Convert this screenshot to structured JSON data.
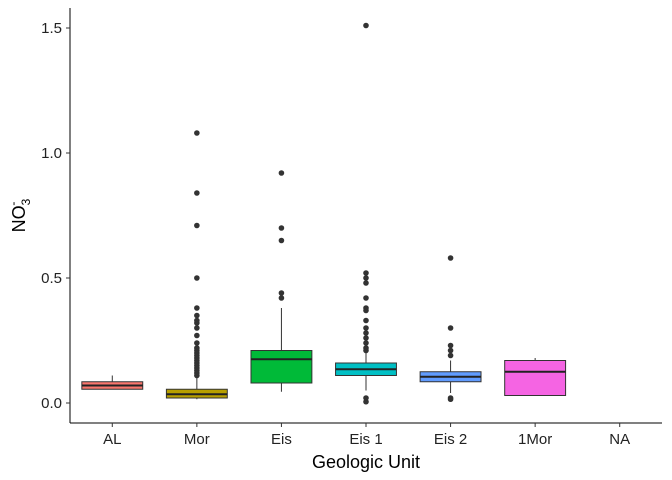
{
  "chart_data": {
    "type": "boxplot",
    "xlabel": "Geologic Unit",
    "ylabel": {
      "base": "NO",
      "subscript": "3",
      "superscript": "-"
    },
    "ylim": [
      -0.08,
      1.58
    ],
    "yticks": [
      0.0,
      0.5,
      1.0,
      1.5
    ],
    "ytick_labels": [
      "0.0",
      "0.5",
      "1.0",
      "1.5"
    ],
    "grid": false,
    "legend": "none",
    "categories": [
      "AL",
      "Mor",
      "Eis",
      "Eis 1",
      "Eis 2",
      "1Mor",
      "NA"
    ],
    "boxes": [
      {
        "category": "AL",
        "min": 0.055,
        "q1": 0.055,
        "median": 0.07,
        "q3": 0.085,
        "max": 0.11,
        "outliers": [],
        "color": "#F8766D"
      },
      {
        "category": "Mor",
        "min": 0.015,
        "q1": 0.02,
        "median": 0.035,
        "q3": 0.055,
        "max": 0.1,
        "outliers": [
          0.11,
          0.12,
          0.13,
          0.14,
          0.15,
          0.16,
          0.17,
          0.18,
          0.19,
          0.2,
          0.21,
          0.22,
          0.24,
          0.27,
          0.3,
          0.32,
          0.33,
          0.35,
          0.38,
          0.5,
          0.71,
          0.84,
          1.08
        ],
        "color": "#B79F00"
      },
      {
        "category": "Eis",
        "min": 0.045,
        "q1": 0.08,
        "median": 0.175,
        "q3": 0.21,
        "max": 0.38,
        "outliers": [
          0.42,
          0.44,
          0.65,
          0.7,
          0.92
        ],
        "color": "#00BA38"
      },
      {
        "category": "Eis 1",
        "min": 0.05,
        "q1": 0.11,
        "median": 0.135,
        "q3": 0.16,
        "max": 0.2,
        "outliers": [
          0.005,
          0.02,
          0.21,
          0.22,
          0.24,
          0.26,
          0.28,
          0.3,
          0.33,
          0.37,
          0.38,
          0.42,
          0.48,
          0.5,
          0.52,
          1.51
        ],
        "color": "#00BFC4"
      },
      {
        "category": "Eis 2",
        "min": 0.04,
        "q1": 0.085,
        "median": 0.105,
        "q3": 0.125,
        "max": 0.17,
        "outliers": [
          0.015,
          0.02,
          0.19,
          0.21,
          0.23,
          0.3,
          0.58
        ],
        "color": "#619CFF"
      },
      {
        "category": "1Mor",
        "min": 0.03,
        "q1": 0.03,
        "median": 0.125,
        "q3": 0.17,
        "max": 0.18,
        "outliers": [],
        "color": "#F564E3"
      },
      {
        "category": "NA",
        "empty": true
      }
    ]
  }
}
